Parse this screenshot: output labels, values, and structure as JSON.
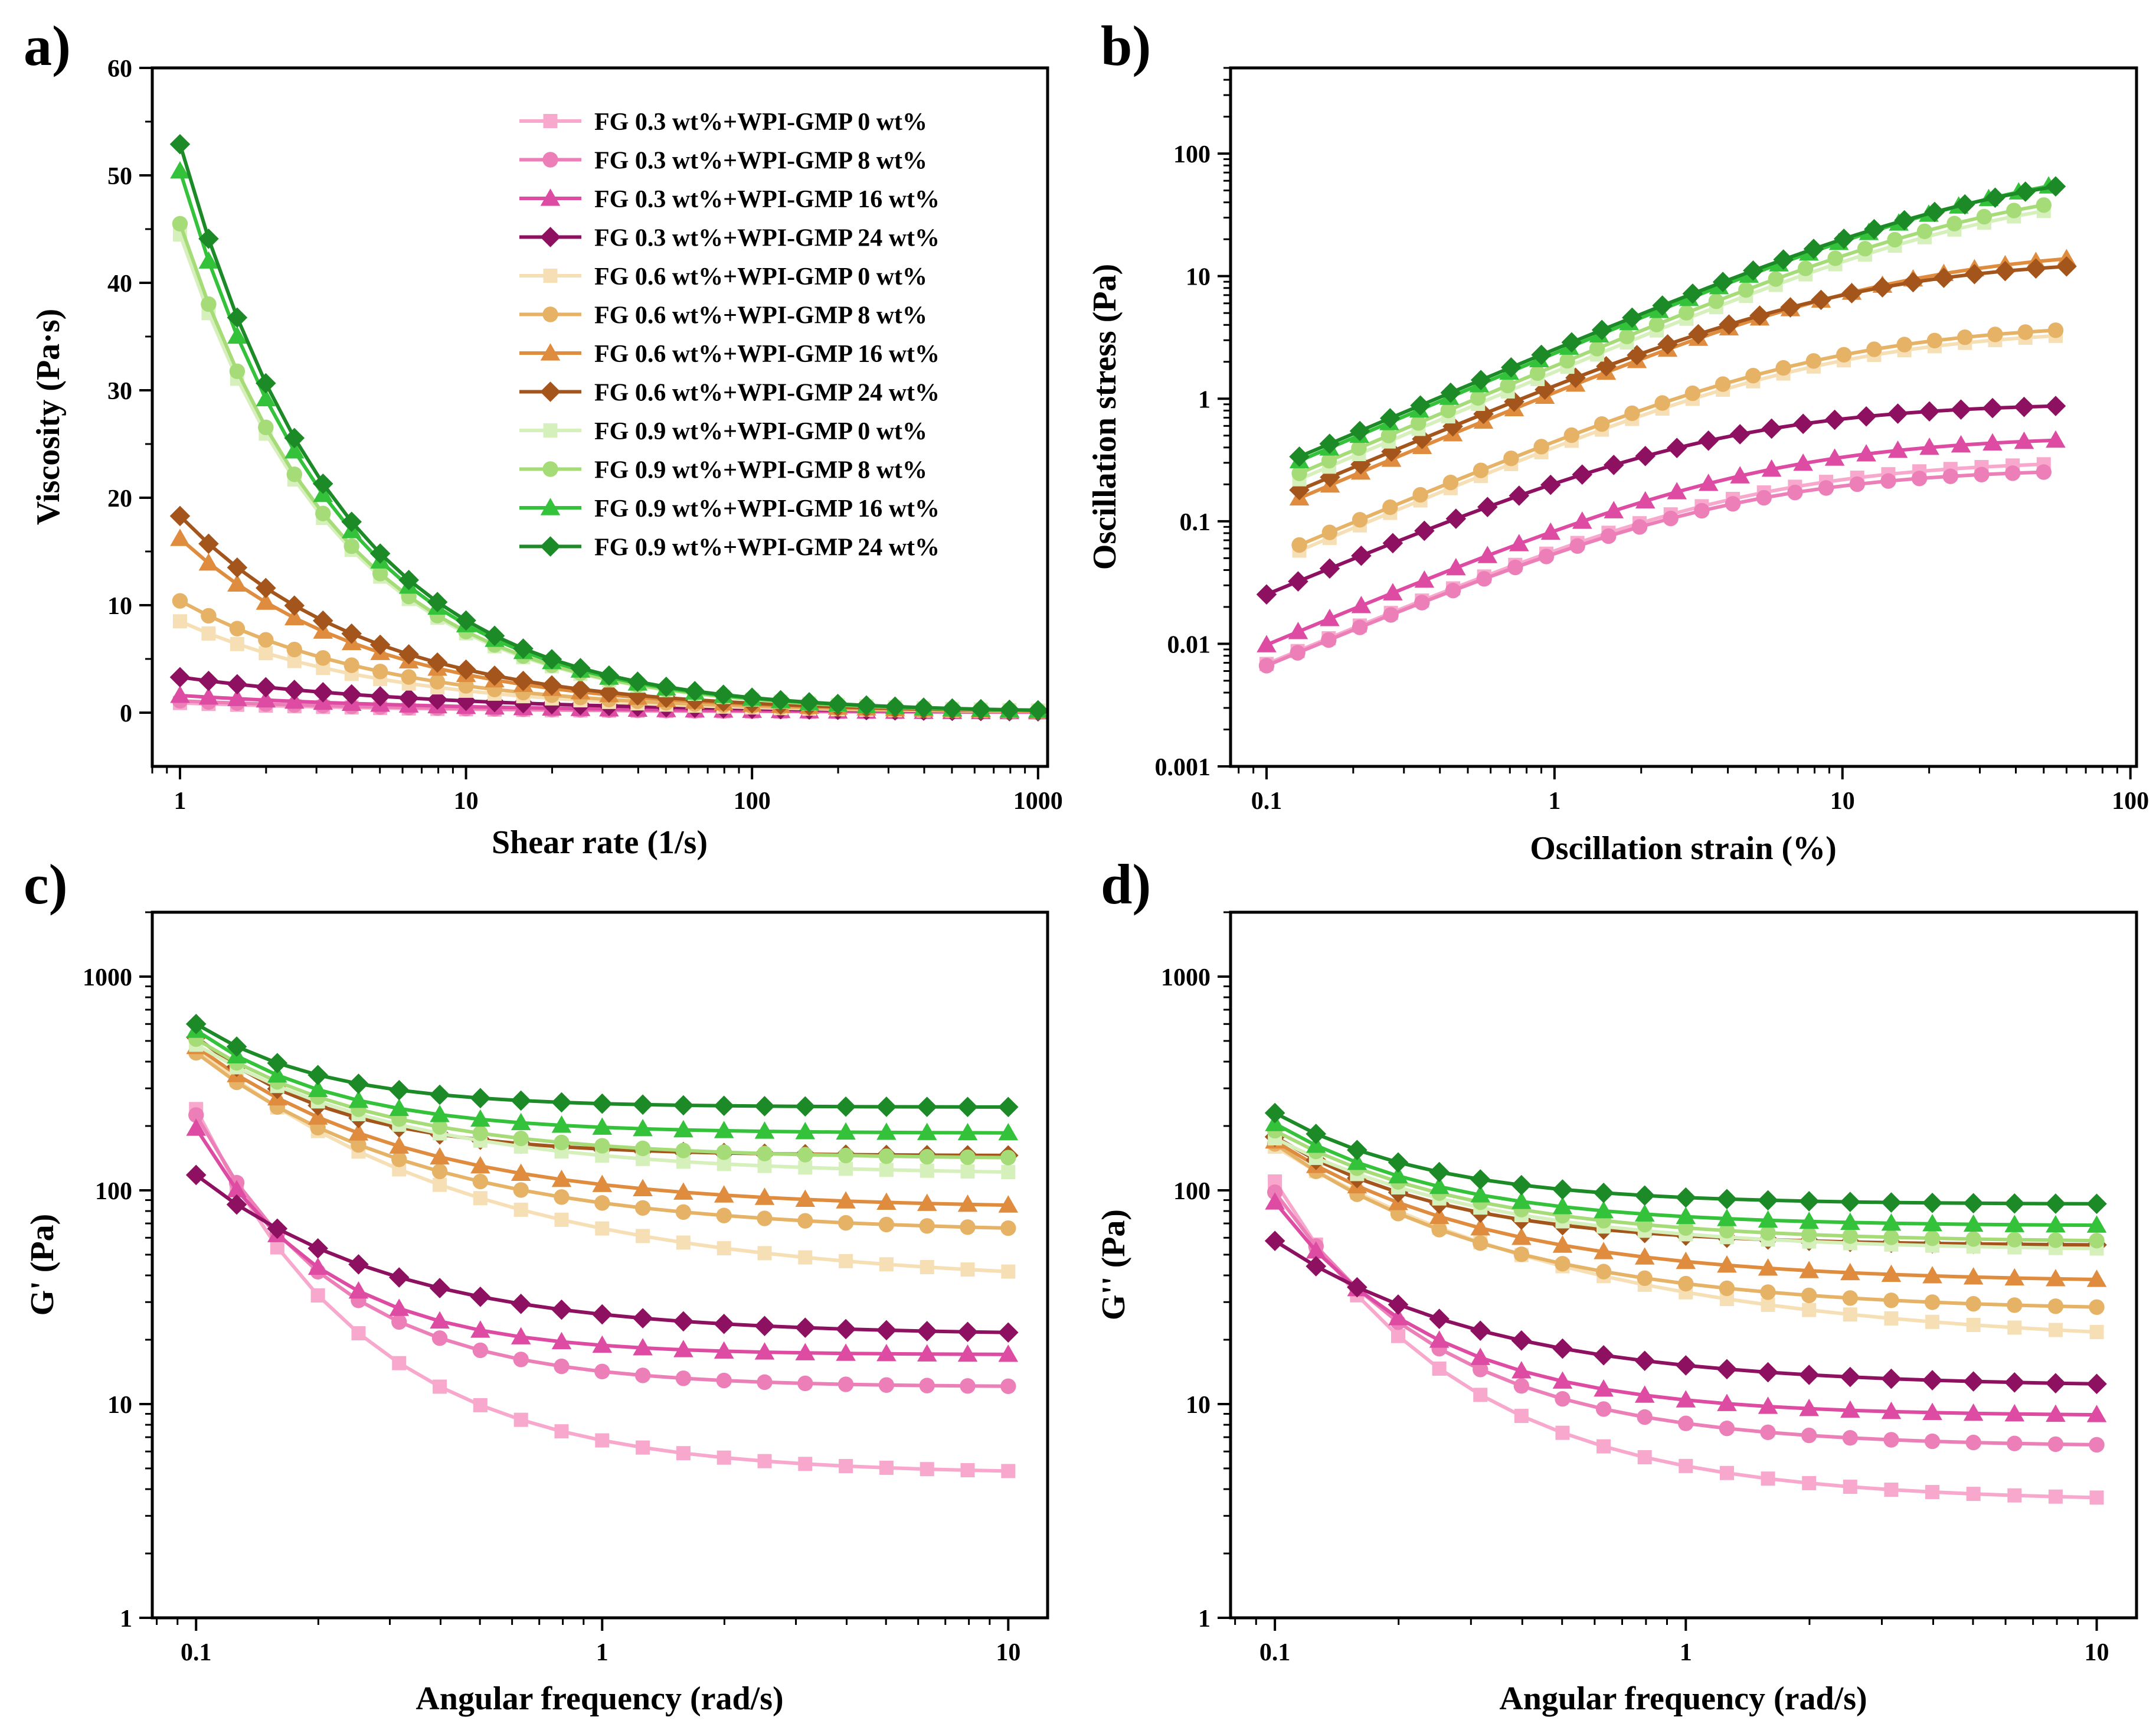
{
  "legend_series": [
    {
      "name": "FG 0.3 wt%+WPI-GMP 0 wt%",
      "color": "#f7a8cc",
      "marker": "square"
    },
    {
      "name": "FG 0.3 wt%+WPI-GMP 8 wt%",
      "color": "#ec7fb8",
      "marker": "circle"
    },
    {
      "name": "FG 0.3 wt%+WPI-GMP 16 wt%",
      "color": "#de4ba3",
      "marker": "triangle"
    },
    {
      "name": "FG 0.3 wt%+WPI-GMP 24 wt%",
      "color": "#8e1060",
      "marker": "diamond"
    },
    {
      "name": "FG 0.6 wt%+WPI-GMP 0 wt%",
      "color": "#f6dfb4",
      "marker": "square"
    },
    {
      "name": "FG 0.6 wt%+WPI-GMP 8 wt%",
      "color": "#e5b266",
      "marker": "circle"
    },
    {
      "name": "FG 0.6 wt%+WPI-GMP 16 wt%",
      "color": "#df8c3f",
      "marker": "triangle"
    },
    {
      "name": "FG 0.6 wt%+WPI-GMP 24 wt%",
      "color": "#a3551c",
      "marker": "diamond"
    },
    {
      "name": "FG 0.9 wt%+WPI-GMP 0 wt%",
      "color": "#d6f0bc",
      "marker": "square"
    },
    {
      "name": "FG 0.9 wt%+WPI-GMP 8 wt%",
      "color": "#a6dc78",
      "marker": "circle"
    },
    {
      "name": "FG 0.9 wt%+WPI-GMP 16 wt%",
      "color": "#33c23a",
      "marker": "triangle"
    },
    {
      "name": "FG 0.9 wt%+WPI-GMP 24 wt%",
      "color": "#1c8a26",
      "marker": "diamond"
    }
  ],
  "chart_data": [
    {
      "id": "a",
      "panel_label": "a)",
      "type": "line",
      "xlabel": "Shear rate (1/s)",
      "ylabel": "Viscosity (Pa·s)",
      "xscale": "log",
      "yscale": "linear",
      "xlim": [
        0.8,
        1080
      ],
      "ylim": [
        -5,
        60
      ],
      "xticks": [
        1,
        10,
        100,
        1000
      ],
      "xtick_labels": [
        "1",
        "10",
        "100",
        "1000"
      ],
      "yticks": [
        0,
        10,
        20,
        30,
        40,
        50,
        60
      ],
      "ytick_labels": [
        "0",
        "10",
        "20",
        "30",
        "40",
        "50",
        "60"
      ],
      "legend": "top-right",
      "x_range": [
        1,
        1000
      ],
      "n_points": 31,
      "series": [
        {
          "name": "FG 0.3 wt%+WPI-GMP 0 wt%",
          "model": "power",
          "params": {
            "a": 0.9,
            "b": 0.45,
            "c": 0.0
          }
        },
        {
          "name": "FG 0.3 wt%+WPI-GMP 8 wt%",
          "model": "power",
          "params": {
            "a": 1.1,
            "b": 0.45,
            "c": 0.0
          }
        },
        {
          "name": "FG 0.3 wt%+WPI-GMP 16 wt%",
          "model": "power",
          "params": {
            "a": 1.6,
            "b": 0.45,
            "c": 0.0
          }
        },
        {
          "name": "FG 0.3 wt%+WPI-GMP 24 wt%",
          "model": "power",
          "params": {
            "a": 3.3,
            "b": 0.48,
            "c": 0.0
          }
        },
        {
          "name": "FG 0.6 wt%+WPI-GMP 0 wt%",
          "model": "power",
          "params": {
            "a": 8.5,
            "b": 0.62,
            "c": 0.0
          }
        },
        {
          "name": "FG 0.6 wt%+WPI-GMP 8 wt%",
          "model": "power",
          "params": {
            "a": 10.4,
            "b": 0.62,
            "c": 0.0
          }
        },
        {
          "name": "FG 0.6 wt%+WPI-GMP 16 wt%",
          "model": "power",
          "params": {
            "a": 16.2,
            "b": 0.66,
            "c": 0.0
          }
        },
        {
          "name": "FG 0.6 wt%+WPI-GMP 24 wt%",
          "model": "power",
          "params": {
            "a": 18.3,
            "b": 0.66,
            "c": 0.0
          }
        },
        {
          "name": "FG 0.9 wt%+WPI-GMP 0 wt%",
          "model": "power",
          "params": {
            "a": 44.5,
            "b": 0.78,
            "c": 0.0
          }
        },
        {
          "name": "FG 0.9 wt%+WPI-GMP 8 wt%",
          "model": "power",
          "params": {
            "a": 45.5,
            "b": 0.78,
            "c": 0.0
          }
        },
        {
          "name": "FG 0.9 wt%+WPI-GMP 16 wt%",
          "model": "power",
          "params": {
            "a": 50.4,
            "b": 0.79,
            "c": 0.0
          }
        },
        {
          "name": "FG 0.9 wt%+WPI-GMP 24 wt%",
          "model": "power",
          "params": {
            "a": 52.9,
            "b": 0.79,
            "c": 0.0
          }
        }
      ]
    },
    {
      "id": "b",
      "panel_label": "b)",
      "type": "line",
      "xlabel": "Oscillation strain (%)",
      "ylabel": "Oscillation stress (Pa)",
      "xscale": "log",
      "yscale": "log",
      "xlim": [
        0.075,
        105
      ],
      "ylim": [
        0.001,
        500
      ],
      "xticks": [
        0.1,
        1,
        10,
        100
      ],
      "xtick_labels": [
        "0.1",
        "1",
        "10",
        "100"
      ],
      "yticks": [
        0.001,
        0.01,
        0.1,
        1,
        10,
        100
      ],
      "ytick_labels": [
        "0.001",
        "0.01",
        "0.1",
        "1",
        "10",
        "100"
      ],
      "n_points": 26,
      "series": [
        {
          "name": "FG 0.3 wt%+WPI-GMP 0 wt%",
          "model": "sat",
          "x_range": [
            0.1,
            50
          ],
          "params": {
            "a": 0.07,
            "p": 1.0,
            "s": 0.22
          }
        },
        {
          "name": "FG 0.3 wt%+WPI-GMP 8 wt%",
          "model": "sat",
          "x_range": [
            0.1,
            50
          ],
          "params": {
            "a": 0.068,
            "p": 1.0,
            "s": 0.25
          }
        },
        {
          "name": "FG 0.3 wt%+WPI-GMP 16 wt%",
          "model": "sat",
          "x_range": [
            0.1,
            55
          ],
          "params": {
            "a": 0.1,
            "p": 1.0,
            "s": 0.2
          }
        },
        {
          "name": "FG 0.3 wt%+WPI-GMP 24 wt%",
          "model": "sat",
          "x_range": [
            0.1,
            55
          ],
          "params": {
            "a": 0.26,
            "p": 1.0,
            "s": 0.28
          }
        },
        {
          "name": "FG 0.6 wt%+WPI-GMP 0 wt%",
          "model": "sat",
          "x_range": [
            0.13,
            55
          ],
          "params": {
            "a": 0.45,
            "p": 1.0,
            "s": 0.12
          }
        },
        {
          "name": "FG 0.6 wt%+WPI-GMP 8 wt%",
          "model": "sat",
          "x_range": [
            0.13,
            55
          ],
          "params": {
            "a": 0.5,
            "p": 1.0,
            "s": 0.12
          }
        },
        {
          "name": "FG 0.6 wt%+WPI-GMP 16 wt%",
          "model": "sat",
          "x_range": [
            0.13,
            60
          ],
          "params": {
            "a": 1.2,
            "p": 1.0,
            "s": 0.07
          }
        },
        {
          "name": "FG 0.6 wt%+WPI-GMP 24 wt%",
          "model": "sat",
          "x_range": [
            0.13,
            60
          ],
          "params": {
            "a": 1.4,
            "p": 1.0,
            "s": 0.1
          }
        },
        {
          "name": "FG 0.9 wt%+WPI-GMP 0 wt%",
          "model": "sat",
          "x_range": [
            0.13,
            50
          ],
          "params": {
            "a": 1.7,
            "p": 1.0,
            "s": 0.03
          }
        },
        {
          "name": "FG 0.9 wt%+WPI-GMP 8 wt%",
          "model": "sat",
          "x_range": [
            0.13,
            50
          ],
          "params": {
            "a": 1.9,
            "p": 1.0,
            "s": 0.03
          }
        },
        {
          "name": "FG 0.9 wt%+WPI-GMP 16 wt%",
          "model": "sat",
          "x_range": [
            0.13,
            52
          ],
          "params": {
            "a": 2.4,
            "p": 1.0,
            "s": 0.025
          }
        },
        {
          "name": "FG 0.9 wt%+WPI-GMP 24 wt%",
          "model": "sat",
          "x_range": [
            0.13,
            55
          ],
          "params": {
            "a": 2.6,
            "p": 1.0,
            "s": 0.03
          }
        }
      ]
    },
    {
      "id": "c",
      "panel_label": "c)",
      "type": "line",
      "xlabel": "Angular frequency (rad/s)",
      "ylabel": "G' (Pa)",
      "xscale": "log",
      "yscale": "log",
      "xlim": [
        0.078,
        12.5
      ],
      "ylim": [
        1,
        2000
      ],
      "xticks": [
        0.1,
        1,
        10
      ],
      "xtick_labels": [
        "0.1",
        "1",
        "10"
      ],
      "yticks": [
        1,
        10,
        100,
        1000
      ],
      "ytick_labels": [
        "1",
        "10",
        "100",
        "1000"
      ],
      "x_range": [
        0.1,
        10
      ],
      "n_points": 21,
      "series": [
        {
          "name": "FG 0.3 wt%+WPI-GMP 0 wt%",
          "model": "decay",
          "params": {
            "a": 4.7,
            "b": 240,
            "s": 1.2
          }
        },
        {
          "name": "FG 0.3 wt%+WPI-GMP 8 wt%",
          "model": "decay",
          "params": {
            "a": 12,
            "b": 225,
            "s": 1.0
          }
        },
        {
          "name": "FG 0.3 wt%+WPI-GMP 16 wt%",
          "model": "decay",
          "params": {
            "a": 17,
            "b": 195,
            "s": 0.9
          }
        },
        {
          "name": "FG 0.3 wt%+WPI-GMP 24 wt%",
          "model": "decay",
          "params": {
            "a": 21,
            "b": 118,
            "s": 1.4
          }
        },
        {
          "name": "FG 0.6 wt%+WPI-GMP 0 wt%",
          "model": "decay",
          "params": {
            "a": 36,
            "b": 460,
            "s": 2.0
          }
        },
        {
          "name": "FG 0.6 wt%+WPI-GMP 8 wt%",
          "model": "decay",
          "params": {
            "a": 63,
            "b": 440,
            "s": 1.6
          }
        },
        {
          "name": "FG 0.6 wt%+WPI-GMP 16 wt%",
          "model": "decay",
          "params": {
            "a": 82,
            "b": 470,
            "s": 1.5
          }
        },
        {
          "name": "FG 0.6 wt%+WPI-GMP 24 wt%",
          "model": "decay",
          "params": {
            "a": 145,
            "b": 520,
            "s": 1.0
          }
        },
        {
          "name": "FG 0.9 wt%+WPI-GMP 0 wt%",
          "model": "decay",
          "params": {
            "a": 118,
            "b": 480,
            "s": 1.5
          }
        },
        {
          "name": "FG 0.9 wt%+WPI-GMP 8 wt%",
          "model": "decay",
          "params": {
            "a": 140,
            "b": 510,
            "s": 1.3
          }
        },
        {
          "name": "FG 0.9 wt%+WPI-GMP 16 wt%",
          "model": "decay",
          "params": {
            "a": 185,
            "b": 560,
            "s": 1.0
          }
        },
        {
          "name": "FG 0.9 wt%+WPI-GMP 24 wt%",
          "model": "decay",
          "params": {
            "a": 245,
            "b": 600,
            "s": 0.9
          }
        }
      ]
    },
    {
      "id": "d",
      "panel_label": "d)",
      "type": "line",
      "xlabel": "Angular frequency (rad/s)",
      "ylabel": "G'' (Pa)",
      "xscale": "log",
      "yscale": "log",
      "xlim": [
        0.078,
        12.5
      ],
      "ylim": [
        1,
        2000
      ],
      "xticks": [
        0.1,
        1,
        10
      ],
      "xtick_labels": [
        "0.1",
        "1",
        "10"
      ],
      "yticks": [
        1,
        10,
        100,
        1000
      ],
      "ytick_labels": [
        "1",
        "10",
        "100",
        "1000"
      ],
      "x_range": [
        0.1,
        10
      ],
      "n_points": 21,
      "series": [
        {
          "name": "FG 0.3 wt%+WPI-GMP 0 wt%",
          "model": "decay",
          "params": {
            "a": 3.5,
            "b": 110,
            "s": 1.3
          }
        },
        {
          "name": "FG 0.3 wt%+WPI-GMP 8 wt%",
          "model": "decay",
          "params": {
            "a": 6.3,
            "b": 98,
            "s": 1.2
          }
        },
        {
          "name": "FG 0.3 wt%+WPI-GMP 16 wt%",
          "model": "decay",
          "params": {
            "a": 8.8,
            "b": 88,
            "s": 1.1
          }
        },
        {
          "name": "FG 0.3 wt%+WPI-GMP 24 wt%",
          "model": "decay",
          "params": {
            "a": 12,
            "b": 58,
            "s": 1.5
          }
        },
        {
          "name": "FG 0.6 wt%+WPI-GMP 0 wt%",
          "model": "decay",
          "params": {
            "a": 18.5,
            "b": 160,
            "s": 2.2
          }
        },
        {
          "name": "FG 0.6 wt%+WPI-GMP 8 wt%",
          "model": "decay",
          "params": {
            "a": 27,
            "b": 165,
            "s": 1.6
          }
        },
        {
          "name": "FG 0.6 wt%+WPI-GMP 16 wt%",
          "model": "decay",
          "params": {
            "a": 37,
            "b": 170,
            "s": 1.5
          }
        },
        {
          "name": "FG 0.6 wt%+WPI-GMP 24 wt%",
          "model": "decay",
          "params": {
            "a": 55,
            "b": 178,
            "s": 1.2
          }
        },
        {
          "name": "FG 0.9 wt%+WPI-GMP 0 wt%",
          "model": "decay",
          "params": {
            "a": 52,
            "b": 175,
            "s": 1.5
          }
        },
        {
          "name": "FG 0.9 wt%+WPI-GMP 8 wt%",
          "model": "decay",
          "params": {
            "a": 57,
            "b": 190,
            "s": 1.4
          }
        },
        {
          "name": "FG 0.9 wt%+WPI-GMP 16 wt%",
          "model": "decay",
          "params": {
            "a": 68,
            "b": 205,
            "s": 1.2
          }
        },
        {
          "name": "FG 0.9 wt%+WPI-GMP 24 wt%",
          "model": "decay",
          "params": {
            "a": 86,
            "b": 230,
            "s": 1.1
          }
        }
      ]
    }
  ]
}
